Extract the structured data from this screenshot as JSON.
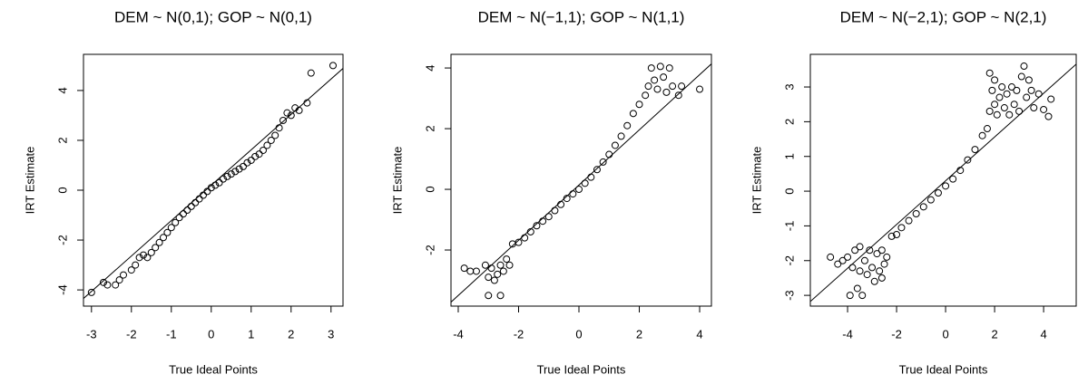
{
  "chart_data": [
    {
      "type": "scatter",
      "title": "DEM ~ N(0,1); GOP ~ N(0,1)",
      "xlabel": "True Ideal Points",
      "ylabel": "IRT Estimate",
      "xlim": [
        -3.2,
        3.3
      ],
      "ylim": [
        -4.65,
        5.45
      ],
      "xticks": [
        -3,
        -2,
        -1,
        0,
        1,
        2,
        3
      ],
      "yticks": [
        -4,
        -2,
        0,
        2,
        4
      ],
      "reference_line": {
        "intercept": 0.2,
        "slope": 1.42
      },
      "x": [
        -3,
        -2.7,
        -2.6,
        -2.4,
        -2.3,
        -2.2,
        -2.0,
        -1.9,
        -1.8,
        -1.7,
        -1.6,
        -1.5,
        -1.4,
        -1.3,
        -1.2,
        -1.1,
        -1.0,
        -0.9,
        -0.8,
        -0.7,
        -0.6,
        -0.5,
        -0.4,
        -0.3,
        -0.2,
        -0.1,
        0,
        0.1,
        0.2,
        0.3,
        0.4,
        0.5,
        0.6,
        0.7,
        0.8,
        0.9,
        1.0,
        1.1,
        1.2,
        1.3,
        1.4,
        1.5,
        1.6,
        1.7,
        1.8,
        1.9,
        2.0,
        2.1,
        2.2,
        2.4,
        2.5,
        3.05
      ],
      "y": [
        -4.1,
        -3.7,
        -3.8,
        -3.8,
        -3.6,
        -3.4,
        -3.2,
        -3.0,
        -2.7,
        -2.6,
        -2.7,
        -2.5,
        -2.3,
        -2.1,
        -1.9,
        -1.7,
        -1.5,
        -1.3,
        -1.1,
        -0.95,
        -0.8,
        -0.65,
        -0.5,
        -0.35,
        -0.2,
        -0.05,
        0.1,
        0.2,
        0.3,
        0.45,
        0.55,
        0.65,
        0.75,
        0.85,
        0.95,
        1.1,
        1.2,
        1.35,
        1.45,
        1.6,
        1.8,
        2.0,
        2.2,
        2.5,
        2.8,
        3.1,
        3.0,
        3.3,
        3.2,
        3.5,
        4.7,
        5.0
      ]
    },
    {
      "type": "scatter",
      "title": "DEM ~ N(−1,1); GOP ~ N(1,1)",
      "xlabel": "True Ideal Points",
      "ylabel": "IRT Estimate",
      "xlim": [
        -4.24,
        4.39
      ],
      "ylim": [
        -3.85,
        4.45
      ],
      "xticks": [
        -4,
        -2,
        0,
        2,
        4
      ],
      "yticks": [
        -2,
        0,
        2,
        4
      ],
      "reference_line": {
        "intercept": 0.14,
        "slope": 0.91
      },
      "x": [
        -3.8,
        -3.6,
        -3.4,
        -3.1,
        -3.0,
        -3.0,
        -2.9,
        -2.8,
        -2.7,
        -2.6,
        -2.6,
        -2.5,
        -2.4,
        -2.3,
        -2.2,
        -2.0,
        -1.8,
        -1.6,
        -1.4,
        -1.2,
        -1.0,
        -0.8,
        -0.6,
        -0.4,
        -0.2,
        0,
        0.2,
        0.4,
        0.6,
        0.8,
        1.0,
        1.2,
        1.4,
        1.6,
        1.8,
        2.0,
        2.2,
        2.3,
        2.4,
        2.5,
        2.6,
        2.7,
        2.8,
        2.9,
        3.0,
        3.1,
        3.3,
        3.4,
        4.0
      ],
      "y": [
        -2.6,
        -2.7,
        -2.7,
        -2.5,
        -2.9,
        -3.5,
        -2.6,
        -3.0,
        -2.8,
        -3.5,
        -2.5,
        -2.7,
        -2.3,
        -2.5,
        -1.8,
        -1.75,
        -1.6,
        -1.4,
        -1.2,
        -1.05,
        -0.9,
        -0.7,
        -0.5,
        -0.3,
        -0.15,
        0,
        0.2,
        0.4,
        0.65,
        0.9,
        1.15,
        1.45,
        1.75,
        2.1,
        2.5,
        2.8,
        3.1,
        3.4,
        4.0,
        3.6,
        3.3,
        4.05,
        3.7,
        3.2,
        4.0,
        3.4,
        3.1,
        3.4,
        3.3
      ]
    },
    {
      "type": "scatter",
      "title": "DEM ~ N(−2,1); GOP ~ N(2,1)",
      "xlabel": "True Ideal Points",
      "ylabel": "IRT Estimate",
      "xlim": [
        -5.52,
        5.33
      ],
      "ylim": [
        -3.31,
        3.94
      ],
      "xticks": [
        -4,
        -2,
        0,
        2,
        4
      ],
      "yticks": [
        -3,
        -2,
        -1,
        0,
        1,
        2,
        3
      ],
      "reference_line": {
        "intercept": 0.3,
        "slope": 0.63
      },
      "x": [
        -4.7,
        -4.4,
        -4.2,
        -4.0,
        -3.9,
        -3.8,
        -3.7,
        -3.6,
        -3.5,
        -3.5,
        -3.4,
        -3.3,
        -3.2,
        -3.1,
        -3.0,
        -2.9,
        -2.8,
        -2.7,
        -2.6,
        -2.6,
        -2.5,
        -2.4,
        -2.2,
        -2.0,
        -1.8,
        -1.5,
        -1.2,
        -0.9,
        -0.6,
        -0.3,
        0,
        0.3,
        0.6,
        0.9,
        1.2,
        1.5,
        1.7,
        1.8,
        1.8,
        1.9,
        2.0,
        2.0,
        2.1,
        2.2,
        2.3,
        2.4,
        2.5,
        2.6,
        2.7,
        2.8,
        2.9,
        3.0,
        3.1,
        3.2,
        3.3,
        3.4,
        3.5,
        3.6,
        3.8,
        4.0,
        4.2,
        4.3
      ],
      "y": [
        -1.9,
        -2.1,
        -2.0,
        -1.9,
        -3.0,
        -2.2,
        -1.7,
        -2.8,
        -2.3,
        -1.6,
        -3.0,
        -2.0,
        -2.4,
        -1.7,
        -2.2,
        -2.6,
        -1.8,
        -2.3,
        -2.5,
        -1.7,
        -2.1,
        -1.9,
        -1.3,
        -1.25,
        -1.05,
        -0.85,
        -0.65,
        -0.45,
        -0.25,
        -0.05,
        0.15,
        0.35,
        0.6,
        0.9,
        1.2,
        1.6,
        1.8,
        2.3,
        3.4,
        2.9,
        2.5,
        3.2,
        2.2,
        2.7,
        3.0,
        2.4,
        2.8,
        2.2,
        3.0,
        2.5,
        2.9,
        2.3,
        3.3,
        3.6,
        2.7,
        3.2,
        2.9,
        2.4,
        2.8,
        2.35,
        2.15,
        2.65
      ]
    }
  ]
}
